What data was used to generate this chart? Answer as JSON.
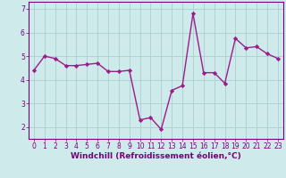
{
  "x": [
    0,
    1,
    2,
    3,
    4,
    5,
    6,
    7,
    8,
    9,
    10,
    11,
    12,
    13,
    14,
    15,
    16,
    17,
    18,
    19,
    20,
    21,
    22,
    23
  ],
  "y": [
    4.4,
    5.0,
    4.9,
    4.6,
    4.6,
    4.65,
    4.7,
    4.35,
    4.35,
    4.4,
    2.3,
    2.4,
    1.9,
    3.55,
    3.75,
    6.8,
    4.3,
    4.3,
    3.85,
    5.75,
    5.35,
    5.4,
    5.1,
    4.9
  ],
  "line_color": "#9b1c8a",
  "marker": "D",
  "marker_size": 2.2,
  "linewidth": 1.0,
  "bg_color": "#ceeaea",
  "grid_color": "#aacece",
  "xlabel": "Windchill (Refroidissement éolien,°C)",
  "ylim": [
    1.5,
    7.3
  ],
  "xlim": [
    -0.5,
    23.5
  ],
  "yticks": [
    2,
    3,
    4,
    5,
    6,
    7
  ],
  "xticks": [
    0,
    1,
    2,
    3,
    4,
    5,
    6,
    7,
    8,
    9,
    10,
    11,
    12,
    13,
    14,
    15,
    16,
    17,
    18,
    19,
    20,
    21,
    22,
    23
  ],
  "tick_fontsize": 5.5,
  "xlabel_fontsize": 6.5,
  "axis_color": "#7a007a"
}
